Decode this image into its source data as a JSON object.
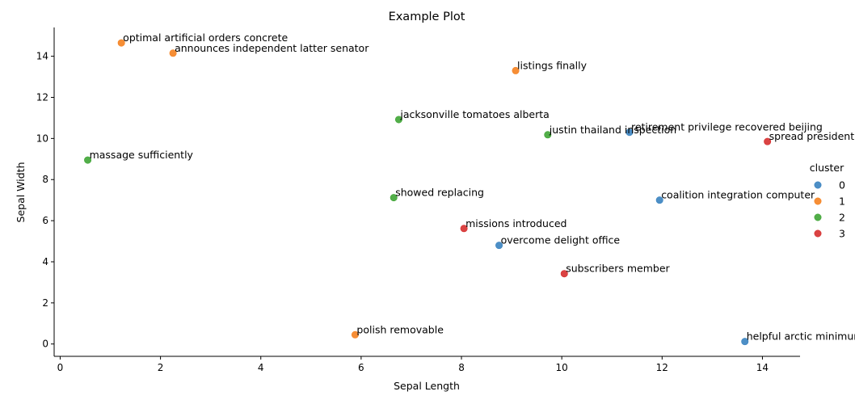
{
  "chart_data": {
    "type": "scatter",
    "title": "Example Plot",
    "xlabel": "Sepal Length",
    "ylabel": "Sepal Width",
    "xlim": [
      -0.12,
      14.75
    ],
    "ylim": [
      -0.6,
      15.4
    ],
    "xticks": [
      0,
      2,
      4,
      6,
      8,
      10,
      12,
      14
    ],
    "yticks": [
      0,
      2,
      4,
      6,
      8,
      10,
      12,
      14
    ],
    "grid": false,
    "legend": {
      "title": "cluster",
      "placement": "right"
    },
    "series": [
      {
        "name": "0",
        "color": "#3a83c0",
        "points": [
          {
            "x": 11.35,
            "y": 10.3,
            "label": "retirement privilege recovered beijing"
          },
          {
            "x": 11.95,
            "y": 7.0,
            "label": "coalition integration computer"
          },
          {
            "x": 8.75,
            "y": 4.8,
            "label": "overcome delight office"
          },
          {
            "x": 13.65,
            "y": 0.12,
            "label": "helpful arctic minimum"
          }
        ]
      },
      {
        "name": "1",
        "color": "#f58220",
        "points": [
          {
            "x": 1.22,
            "y": 14.65,
            "label": "optimal artificial orders concrete"
          },
          {
            "x": 2.25,
            "y": 14.15,
            "label": "announces independent latter senator"
          },
          {
            "x": 9.08,
            "y": 13.3,
            "label": "listings finally"
          },
          {
            "x": 5.88,
            "y": 0.45,
            "label": "polish removable"
          }
        ]
      },
      {
        "name": "2",
        "color": "#3fa535",
        "points": [
          {
            "x": 6.75,
            "y": 10.92,
            "label": "jacksonville tomatoes alberta"
          },
          {
            "x": 9.72,
            "y": 10.18,
            "label": "justin thailand inspection"
          },
          {
            "x": 0.55,
            "y": 8.95,
            "label": "massage sufficiently"
          },
          {
            "x": 6.65,
            "y": 7.12,
            "label": "showed replacing"
          }
        ]
      },
      {
        "name": "3",
        "color": "#d62f2f",
        "points": [
          {
            "x": 14.1,
            "y": 9.85,
            "label": "spread president"
          },
          {
            "x": 8.05,
            "y": 5.62,
            "label": "missions introduced"
          },
          {
            "x": 10.05,
            "y": 3.42,
            "label": "subscribers member"
          }
        ]
      }
    ]
  }
}
